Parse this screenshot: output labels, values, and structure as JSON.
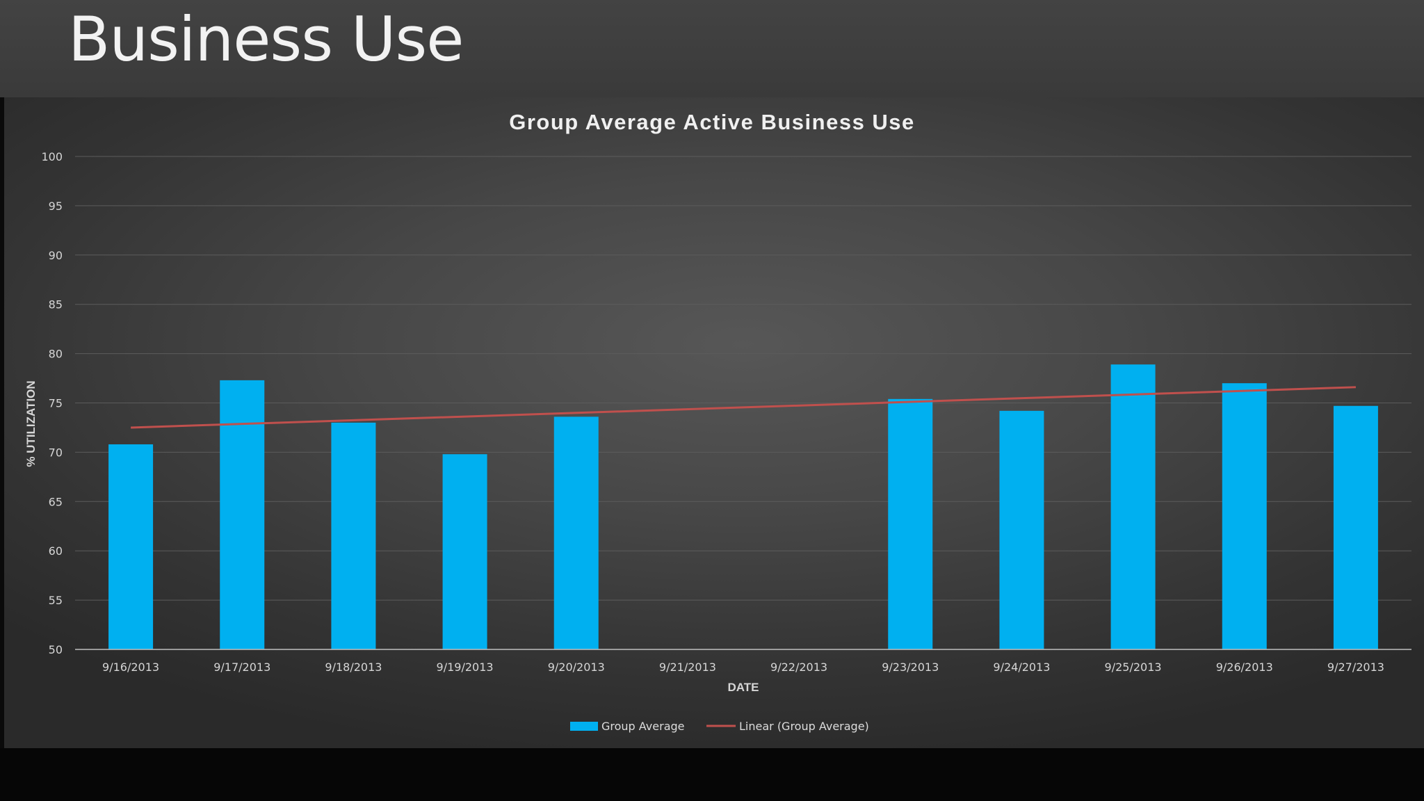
{
  "slide": {
    "title": "Business Use"
  },
  "chart_data": {
    "type": "bar",
    "title": "Group Average Active Business Use",
    "xlabel": "DATE",
    "ylabel": "% UTILIZATION",
    "ylim": [
      50,
      100
    ],
    "y_ticks": [
      50,
      55,
      60,
      65,
      70,
      75,
      80,
      85,
      90,
      95,
      100
    ],
    "grid": true,
    "legend_position": "bottom",
    "categories": [
      "9/16/2013",
      "9/17/2013",
      "9/18/2013",
      "9/19/2013",
      "9/20/2013",
      "9/21/2013",
      "9/22/2013",
      "9/23/2013",
      "9/24/2013",
      "9/25/2013",
      "9/26/2013",
      "9/27/2013"
    ],
    "series": [
      {
        "name": "Group Average",
        "color": "#00b0f0",
        "values": [
          70.8,
          77.3,
          73.0,
          69.8,
          73.6,
          null,
          null,
          75.4,
          74.2,
          78.9,
          77.0,
          74.7
        ]
      }
    ],
    "trendline": {
      "name": "Linear (Group Average)",
      "type": "linear",
      "color": "#c0504d",
      "start": 72.5,
      "end": 76.6
    }
  }
}
